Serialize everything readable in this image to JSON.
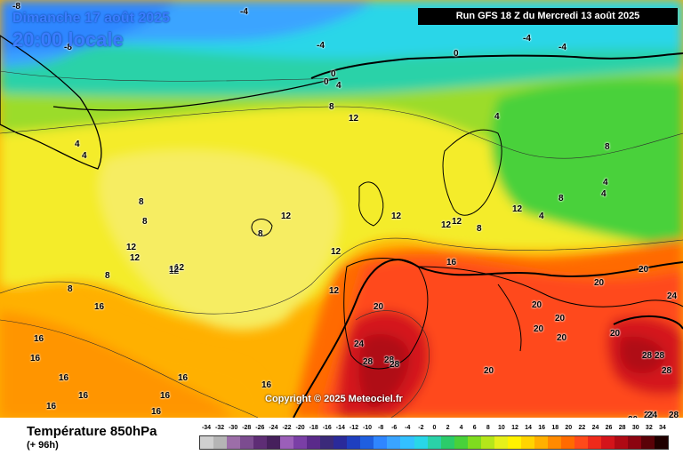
{
  "header": {
    "date": "Dimanche 17 août 2025",
    "time": "20:00 locale",
    "run": "Run GFS 18 Z du Mercredi 13 août 2025"
  },
  "copyright": "Copyright © 2025 Meteociel.fr",
  "legend": {
    "parameter": "Température 850hPa",
    "lead_time": "(+ 96h)",
    "scale": [
      "-34",
      "-32",
      "-30",
      "-28",
      "-26",
      "-24",
      "-22",
      "-20",
      "-18",
      "-16",
      "-14",
      "-12",
      "-10",
      "-8",
      "-6",
      "-4",
      "-2",
      "0",
      "2",
      "4",
      "6",
      "8",
      "10",
      "12",
      "14",
      "16",
      "18",
      "20",
      "22",
      "24",
      "26",
      "28",
      "30",
      "32",
      "34"
    ],
    "colors": [
      "#cfcfcf",
      "#b5b5b5",
      "#9c6ea8",
      "#7c4c90",
      "#5e2d75",
      "#46205c",
      "#9b5fb9",
      "#7a3fa6",
      "#5a2a8a",
      "#3b2a7a",
      "#2a2a9a",
      "#1f3fbf",
      "#1f5fe0",
      "#2f86ff",
      "#3aa4ff",
      "#33c1ff",
      "#29d6e8",
      "#2ad2a8",
      "#2bcc6a",
      "#48d13a",
      "#7fdc1f",
      "#b5e61a",
      "#e6f01a",
      "#fff200",
      "#ffd400",
      "#ffb000",
      "#ff8a00",
      "#ff6a00",
      "#ff4a1a",
      "#ef2a1a",
      "#d4141a",
      "#b00a14",
      "#8c0410",
      "#5a0208",
      "#200000"
    ]
  },
  "map_labels": [
    {
      "text": "-8"
    },
    {
      "text": "-4"
    },
    {
      "text": "-8"
    },
    {
      "text": "-4"
    },
    {
      "text": "-4"
    },
    {
      "text": "-4"
    },
    {
      "text": "0"
    },
    {
      "text": "0"
    },
    {
      "text": "0"
    },
    {
      "text": "4"
    },
    {
      "text": "8"
    },
    {
      "text": "12"
    },
    {
      "text": "4"
    },
    {
      "text": "4"
    },
    {
      "text": "4"
    },
    {
      "text": "8"
    },
    {
      "text": "4"
    },
    {
      "text": "4"
    },
    {
      "text": "4"
    },
    {
      "text": "8"
    },
    {
      "text": "8"
    },
    {
      "text": "8"
    },
    {
      "text": "12"
    },
    {
      "text": "12"
    },
    {
      "text": "12"
    },
    {
      "text": "12"
    },
    {
      "text": "12"
    },
    {
      "text": "12"
    },
    {
      "text": "12"
    },
    {
      "text": "8"
    },
    {
      "text": "8"
    },
    {
      "text": "12"
    },
    {
      "text": "16"
    },
    {
      "text": "16"
    },
    {
      "text": "16"
    },
    {
      "text": "16"
    },
    {
      "text": "16"
    },
    {
      "text": "16"
    },
    {
      "text": "16"
    },
    {
      "text": "16"
    },
    {
      "text": "16"
    },
    {
      "text": "16"
    },
    {
      "text": "16"
    },
    {
      "text": "20"
    },
    {
      "text": "20"
    },
    {
      "text": "20"
    },
    {
      "text": "20"
    },
    {
      "text": "20"
    },
    {
      "text": "20"
    },
    {
      "text": "20"
    },
    {
      "text": "20"
    },
    {
      "text": "20"
    },
    {
      "text": "24"
    },
    {
      "text": "24"
    },
    {
      "text": "24"
    },
    {
      "text": "28"
    },
    {
      "text": "28"
    },
    {
      "text": "28"
    },
    {
      "text": "28"
    },
    {
      "text": "28"
    },
    {
      "text": "28"
    },
    {
      "text": "20"
    },
    {
      "text": "24"
    },
    {
      "text": "28"
    },
    {
      "text": "8"
    },
    {
      "text": "12"
    },
    {
      "text": "12"
    },
    {
      "text": "12"
    },
    {
      "text": "12"
    },
    {
      "text": "8"
    }
  ]
}
